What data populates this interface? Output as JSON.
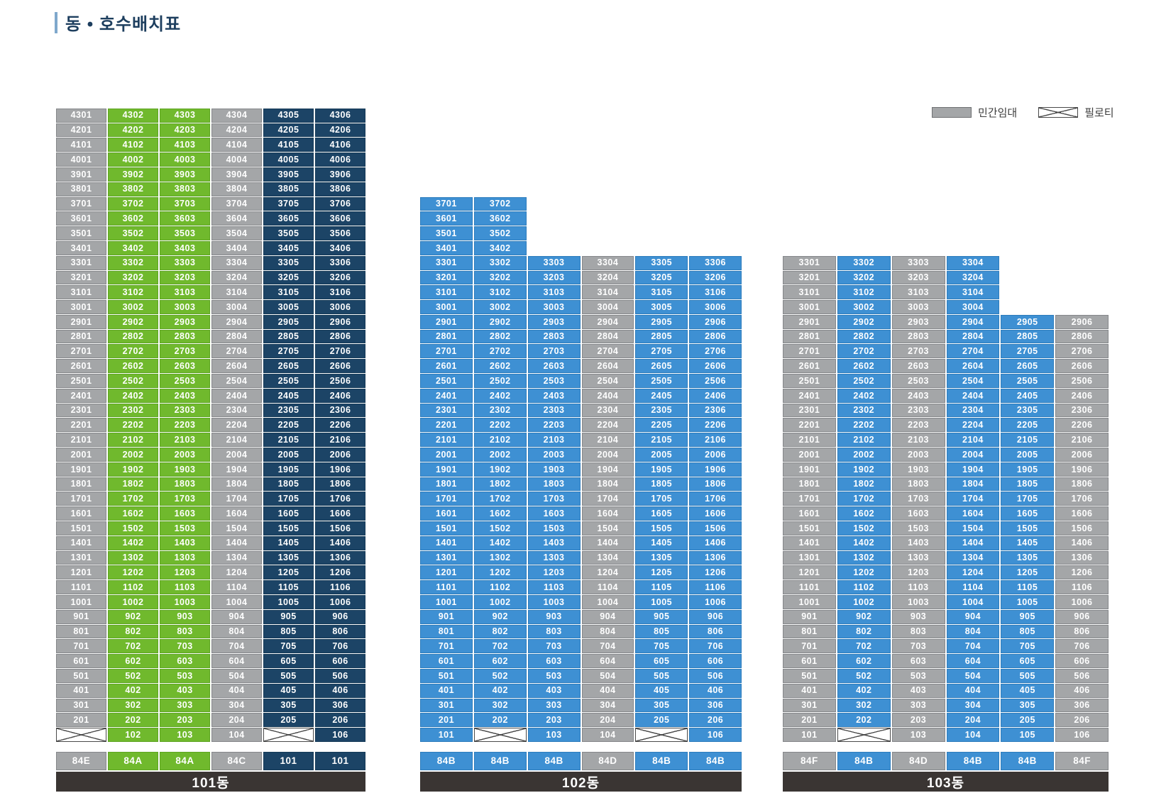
{
  "title": "동 • 호수배치표",
  "legend": {
    "items": [
      {
        "label": "민간임대",
        "swatch": "gray"
      },
      {
        "label": "필로티",
        "swatch": "piloti"
      }
    ]
  },
  "colors": {
    "gray": "#a4a6a8",
    "green": "#70b92d",
    "blue": "#3e90d3",
    "navy": "#1c4466",
    "accent": "#7fa8cc",
    "titleText": "#1d3e5e",
    "footerBg": "#3a3533"
  },
  "buildings": [
    {
      "name": "101동",
      "column_colors": [
        "gray",
        "green",
        "green",
        "gray",
        "navy",
        "navy"
      ],
      "types": [
        "84E",
        "84A",
        "84A",
        "84C",
        "101",
        "101"
      ],
      "rows": [
        "4301 4302 4303 4304 4305 4306",
        "4201 4202 4203 4204 4205 4206",
        "4101 4102 4103 4104 4105 4106",
        "4001 4002 4003 4004 4005 4006",
        "3901 3902 3903 3904 3905 3906",
        "3801 3802 3803 3804 3805 3806",
        "3701 3702 3703 3704 3705 3706",
        "3601 3602 3603 3604 3605 3606",
        "3501 3502 3503 3504 3505 3506",
        "3401 3402 3403 3404 3405 3406",
        "3301 3302 3303 3304 3305 3306",
        "3201 3202 3203 3204 3205 3206",
        "3101 3102 3103 3104 3105 3106",
        "3001 3002 3003 3004 3005 3006",
        "2901 2902 2903 2904 2905 2906",
        "2801 2802 2803 2804 2805 2806",
        "2701 2702 2703 2704 2705 2706",
        "2601 2602 2603 2604 2605 2606",
        "2501 2502 2503 2504 2505 2506",
        "2401 2402 2403 2404 2405 2406",
        "2301 2302 2303 2304 2305 2306",
        "2201 2202 2203 2204 2205 2206",
        "2101 2102 2103 2104 2105 2106",
        "2001 2002 2003 2004 2005 2006",
        "1901 1902 1903 1904 1905 1906",
        "1801 1802 1803 1804 1805 1806",
        "1701 1702 1703 1704 1705 1706",
        "1601 1602 1603 1604 1605 1606",
        "1501 1502 1503 1504 1505 1506",
        "1401 1402 1403 1404 1405 1406",
        "1301 1302 1303 1304 1305 1306",
        "1201 1202 1203 1204 1205 1206",
        "1101 1102 1103 1104 1105 1106",
        "1001 1002 1003 1004 1005 1006",
        "901 902 903 904 905 906",
        "801 802 803 804 805 806",
        "701 702 703 704 705 706",
        "601 602 603 604 605 606",
        "501 502 503 504 505 506",
        "401 402 403 404 405 406",
        "301 302 303 304 305 306",
        "201 202 203 204 205 206",
        "X 102 103 104 X 106"
      ]
    },
    {
      "name": "102동",
      "column_colors": [
        "blue",
        "blue",
        "blue",
        "gray",
        "blue",
        "blue"
      ],
      "types": [
        "84B",
        "84B",
        "84B",
        "84D",
        "84B",
        "84B"
      ],
      "rows": [
        "3701 3702 - - - -",
        "3601 3602 - - - -",
        "3501 3502 - - - -",
        "3401 3402 - - - -",
        "3301 3302 3303 3304 3305 3306",
        "3201 3202 3203 3204 3205 3206",
        "3101 3102 3103 3104 3105 3106",
        "3001 3002 3003 3004 3005 3006",
        "2901 2902 2903 2904 2905 2906",
        "2801 2802 2803 2804 2805 2806",
        "2701 2702 2703 2704 2705 2706",
        "2601 2602 2603 2604 2605 2606",
        "2501 2502 2503 2504 2505 2506",
        "2401 2402 2403 2404 2405 2406",
        "2301 2302 2303 2304 2305 2306",
        "2201 2202 2203 2204 2205 2206",
        "2101 2102 2103 2104 2105 2106",
        "2001 2002 2003 2004 2005 2006",
        "1901 1902 1903 1904 1905 1906",
        "1801 1802 1803 1804 1805 1806",
        "1701 1702 1703 1704 1705 1706",
        "1601 1602 1603 1604 1605 1606",
        "1501 1502 1503 1504 1505 1506",
        "1401 1402 1403 1404 1405 1406",
        "1301 1302 1303 1304 1305 1306",
        "1201 1202 1203 1204 1205 1206",
        "1101 1102 1103 1104 1105 1106",
        "1001 1002 1003 1004 1005 1006",
        "901 902 903 904 905 906",
        "801 802 803 804 805 806",
        "701 702 703 704 705 706",
        "601 602 603 604 605 606",
        "501 502 503 504 505 506",
        "401 402 403 404 405 406",
        "301 302 303 304 305 306",
        "201 202 203 204 205 206",
        "101 X 103 104 X 106"
      ]
    },
    {
      "name": "103동",
      "column_colors": [
        "gray",
        "blue",
        "gray",
        "blue",
        "blue",
        "gray"
      ],
      "types": [
        "84F",
        "84B",
        "84D",
        "84B",
        "84B",
        "84F"
      ],
      "rows": [
        "3301 3302 3303 3304 - -",
        "3201 3202 3203 3204 - -",
        "3101 3102 3103 3104 - -",
        "3001 3002 3003 3004 - -",
        "2901 2902 2903 2904 2905 2906",
        "2801 2802 2803 2804 2805 2806",
        "2701 2702 2703 2704 2705 2706",
        "2601 2602 2603 2604 2605 2606",
        "2501 2502 2503 2504 2505 2506",
        "2401 2402 2403 2404 2405 2406",
        "2301 2302 2303 2304 2305 2306",
        "2201 2202 2203 2204 2205 2206",
        "2101 2102 2103 2104 2105 2106",
        "2001 2002 2003 2004 2005 2006",
        "1901 1902 1903 1904 1905 1906",
        "1801 1802 1803 1804 1805 1806",
        "1701 1702 1703 1704 1705 1706",
        "1601 1602 1603 1604 1605 1606",
        "1501 1502 1503 1504 1505 1506",
        "1401 1402 1403 1404 1405 1406",
        "1301 1302 1303 1304 1305 1306",
        "1201 1202 1203 1204 1205 1206",
        "1101 1102 1103 1104 1105 1106",
        "1001 1002 1003 1004 1005 1006",
        "901 902 903 904 905 906",
        "801 802 803 804 805 806",
        "701 702 703 704 705 706",
        "601 602 603 604 605 606",
        "501 502 503 504 505 506",
        "401 402 403 404 405 406",
        "301 302 303 304 305 306",
        "201 202 203 204 205 206",
        "101 X 103 104 105 106"
      ]
    }
  ]
}
